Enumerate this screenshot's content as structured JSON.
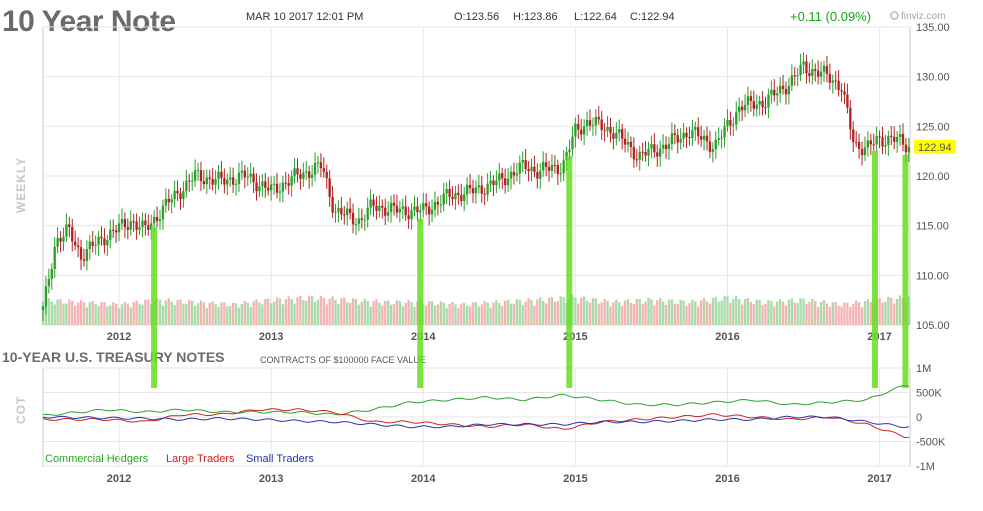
{
  "header": {
    "title": "10 Year Note",
    "timestamp": "MAR 10 2017 12:01 PM",
    "open": "O:123.56",
    "high": "H:123.86",
    "low": "L:122.64",
    "close": "C:122.94",
    "change": "+0.11 (0.09%)",
    "brand": "finviz.com"
  },
  "price_panel": {
    "side_label": "WEEKLY",
    "last_price_badge": "122.94",
    "badge_color": "#ffff00"
  },
  "cot_panel": {
    "title": "10-YEAR U.S. TREASURY NOTES",
    "subtitle": "CONTRACTS OF $100000 FACE VALUE",
    "side_label": "COT",
    "legend": [
      {
        "label": "Commercial Hedgers",
        "color": "#22aa22"
      },
      {
        "label": "Large Traders",
        "color": "#cc2222"
      },
      {
        "label": "Small Traders",
        "color": "#2233aa"
      }
    ]
  },
  "colors": {
    "up": "#2aa02a",
    "down": "#b22222",
    "vol_up": "#a8dba8",
    "vol_down": "#f4b4b4",
    "highlight": "#66dd22",
    "grid": "#e6e6e6"
  },
  "chart_data": [
    {
      "type": "line",
      "note": "weekly price of 10 Year Note futures (candlesticks)",
      "title": "10 Year Note",
      "ylim": [
        105,
        135
      ],
      "yticks": [
        "105.00",
        "110.00",
        "115.00",
        "120.00",
        "125.00",
        "130.00",
        "135.00"
      ],
      "xticks": [
        "2012",
        "2013",
        "2014",
        "2015",
        "2016",
        "2017"
      ],
      "x": [
        "2011-07",
        "2011-08",
        "2011-09",
        "2011-10",
        "2011-12",
        "2012-02",
        "2012-03",
        "2012-05",
        "2012-07",
        "2012-09",
        "2012-11",
        "2013-01",
        "2013-03",
        "2013-05",
        "2013-06",
        "2013-08",
        "2013-09",
        "2013-11",
        "2014-01",
        "2014-03",
        "2014-05",
        "2014-07",
        "2014-09",
        "2014-10",
        "2014-12",
        "2015-01",
        "2015-02",
        "2015-04",
        "2015-06",
        "2015-08",
        "2015-10",
        "2015-12",
        "2016-02",
        "2016-04",
        "2016-06",
        "2016-07",
        "2016-09",
        "2016-10",
        "2016-11",
        "2016-12",
        "2017-02",
        "2017-03"
      ],
      "values": [
        106.5,
        113.5,
        114.5,
        112.0,
        114.0,
        115.5,
        114.5,
        117.5,
        120.0,
        119.5,
        120.0,
        118.5,
        120.0,
        121.0,
        116.5,
        115.5,
        117.0,
        116.5,
        116.5,
        118.0,
        118.5,
        119.5,
        121.0,
        120.5,
        121.0,
        124.5,
        125.5,
        124.5,
        122.0,
        123.0,
        124.5,
        123.0,
        127.0,
        127.5,
        129.5,
        131.0,
        130.0,
        129.0,
        123.0,
        123.0,
        124.0,
        122.94
      ],
      "last": 122.94
    },
    {
      "type": "bar",
      "note": "weekly volume (scaled, no axis); green = up week, red = down week",
      "x": [
        "2011-07",
        "2011-10",
        "2012-01",
        "2012-04",
        "2012-07",
        "2012-10",
        "2013-01",
        "2013-04",
        "2013-07",
        "2013-10",
        "2014-01",
        "2014-04",
        "2014-07",
        "2014-10",
        "2015-01",
        "2015-04",
        "2015-07",
        "2015-10",
        "2016-01",
        "2016-04",
        "2016-07",
        "2016-10",
        "2017-01",
        "2017-03"
      ],
      "values": [
        0.55,
        0.5,
        0.45,
        0.55,
        0.5,
        0.45,
        0.55,
        0.6,
        0.55,
        0.5,
        0.5,
        0.45,
        0.5,
        0.55,
        0.6,
        0.5,
        0.55,
        0.5,
        0.6,
        0.5,
        0.55,
        0.45,
        0.55,
        0.6
      ]
    },
    {
      "type": "line",
      "title": "10-YEAR U.S. TREASURY NOTES",
      "subtitle": "CONTRACTS OF $100000 FACE VALUE",
      "ylim": [
        -1000000,
        1000000
      ],
      "yticks": [
        "1M",
        "500K",
        "0",
        "-500K",
        "-1M"
      ],
      "xticks": [
        "2012",
        "2013",
        "2014",
        "2015",
        "2016",
        "2017"
      ],
      "x": [
        "2011-07",
        "2011-12",
        "2012-03",
        "2012-06",
        "2012-09",
        "2012-12",
        "2013-03",
        "2013-06",
        "2013-09",
        "2013-12",
        "2014-03",
        "2014-06",
        "2014-09",
        "2014-12",
        "2015-03",
        "2015-06",
        "2015-09",
        "2015-12",
        "2016-03",
        "2016-06",
        "2016-09",
        "2016-12",
        "2017-03"
      ],
      "series": [
        {
          "name": "Commercial Hedgers",
          "values": [
            30000,
            150000,
            100000,
            150000,
            100000,
            100000,
            100000,
            50000,
            150000,
            300000,
            350000,
            400000,
            350000,
            450000,
            350000,
            250000,
            250000,
            300000,
            350000,
            250000,
            300000,
            350000,
            650000
          ]
        },
        {
          "name": "Large Traders",
          "values": [
            -50000,
            -50000,
            -100000,
            50000,
            50000,
            150000,
            150000,
            100000,
            -100000,
            -100000,
            -150000,
            -200000,
            -150000,
            -250000,
            -100000,
            -50000,
            0,
            50000,
            0,
            -50000,
            0,
            -150000,
            -400000
          ]
        },
        {
          "name": "Small Traders",
          "values": [
            0,
            -20000,
            -30000,
            -50000,
            -30000,
            -50000,
            -80000,
            -100000,
            -150000,
            -200000,
            -200000,
            -150000,
            -150000,
            -150000,
            -100000,
            -100000,
            -80000,
            -50000,
            -50000,
            0,
            0,
            -100000,
            -200000
          ]
        }
      ]
    }
  ]
}
